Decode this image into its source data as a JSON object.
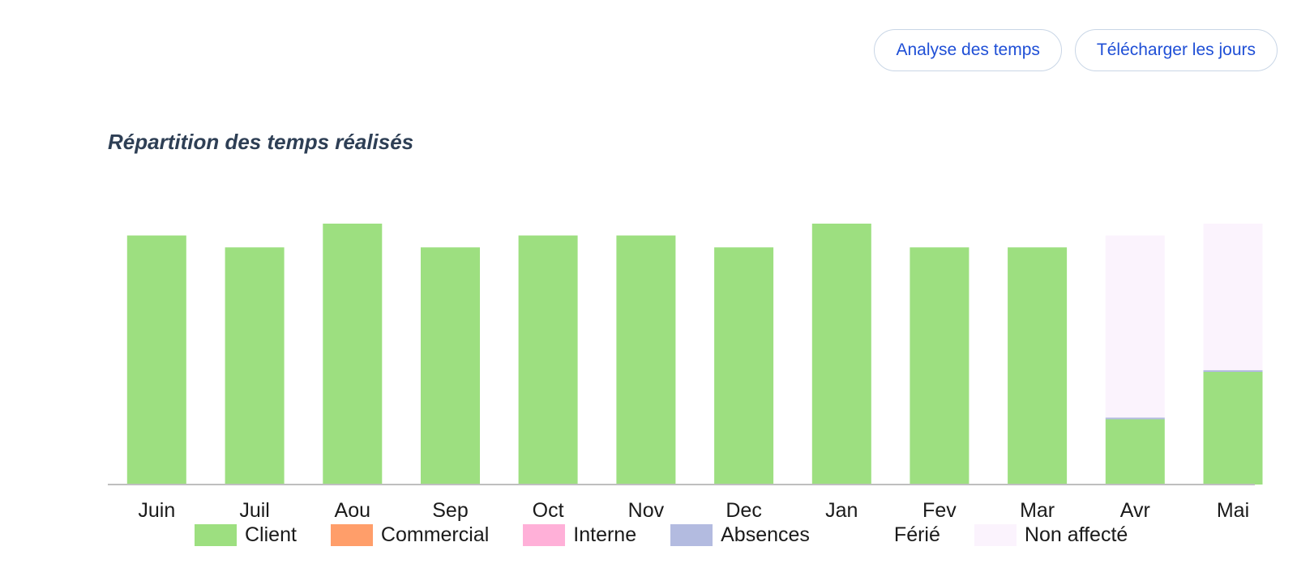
{
  "toolbar": {
    "analyse_label": "Analyse des temps",
    "download_label": "Télécharger les jours"
  },
  "chart_data": {
    "type": "bar",
    "stacked": true,
    "title": "Répartition des temps réalisés",
    "categories": [
      "Juin",
      "Juil",
      "Aou",
      "Sep",
      "Oct",
      "Nov",
      "Dec",
      "Jan",
      "Fev",
      "Mar",
      "Avr",
      "Mai"
    ],
    "series": [
      {
        "name": "Client",
        "color": "#9ddf80",
        "values": [
          21,
          20,
          22,
          20,
          21,
          21,
          20,
          22,
          20,
          20,
          5.5,
          9.5
        ]
      },
      {
        "name": "Commercial",
        "color": "#ff9e6a",
        "values": [
          0,
          0,
          0,
          0,
          0,
          0,
          0,
          0,
          0,
          0,
          0,
          0
        ]
      },
      {
        "name": "Interne",
        "color": "#ffb0d8",
        "values": [
          0,
          0,
          0,
          0,
          0,
          0,
          0,
          0,
          0,
          0,
          0,
          0
        ]
      },
      {
        "name": "Absences",
        "color": "#b3bbe0",
        "values": [
          0,
          0,
          0,
          0,
          0,
          0,
          0,
          0,
          0,
          0,
          0.15,
          0.15
        ]
      },
      {
        "name": "Férié",
        "color": "#ffffff",
        "values": [
          0,
          0,
          0,
          0,
          0,
          0,
          0,
          0,
          0,
          0,
          0,
          0
        ]
      },
      {
        "name": "Non affecté",
        "color": "#fbf3fd",
        "values": [
          0,
          0,
          0,
          0,
          0,
          0,
          0,
          0,
          0,
          0,
          15.35,
          12.35
        ]
      }
    ],
    "ylim": [
      0,
      22
    ],
    "grid": false,
    "legend_position": "bottom"
  }
}
